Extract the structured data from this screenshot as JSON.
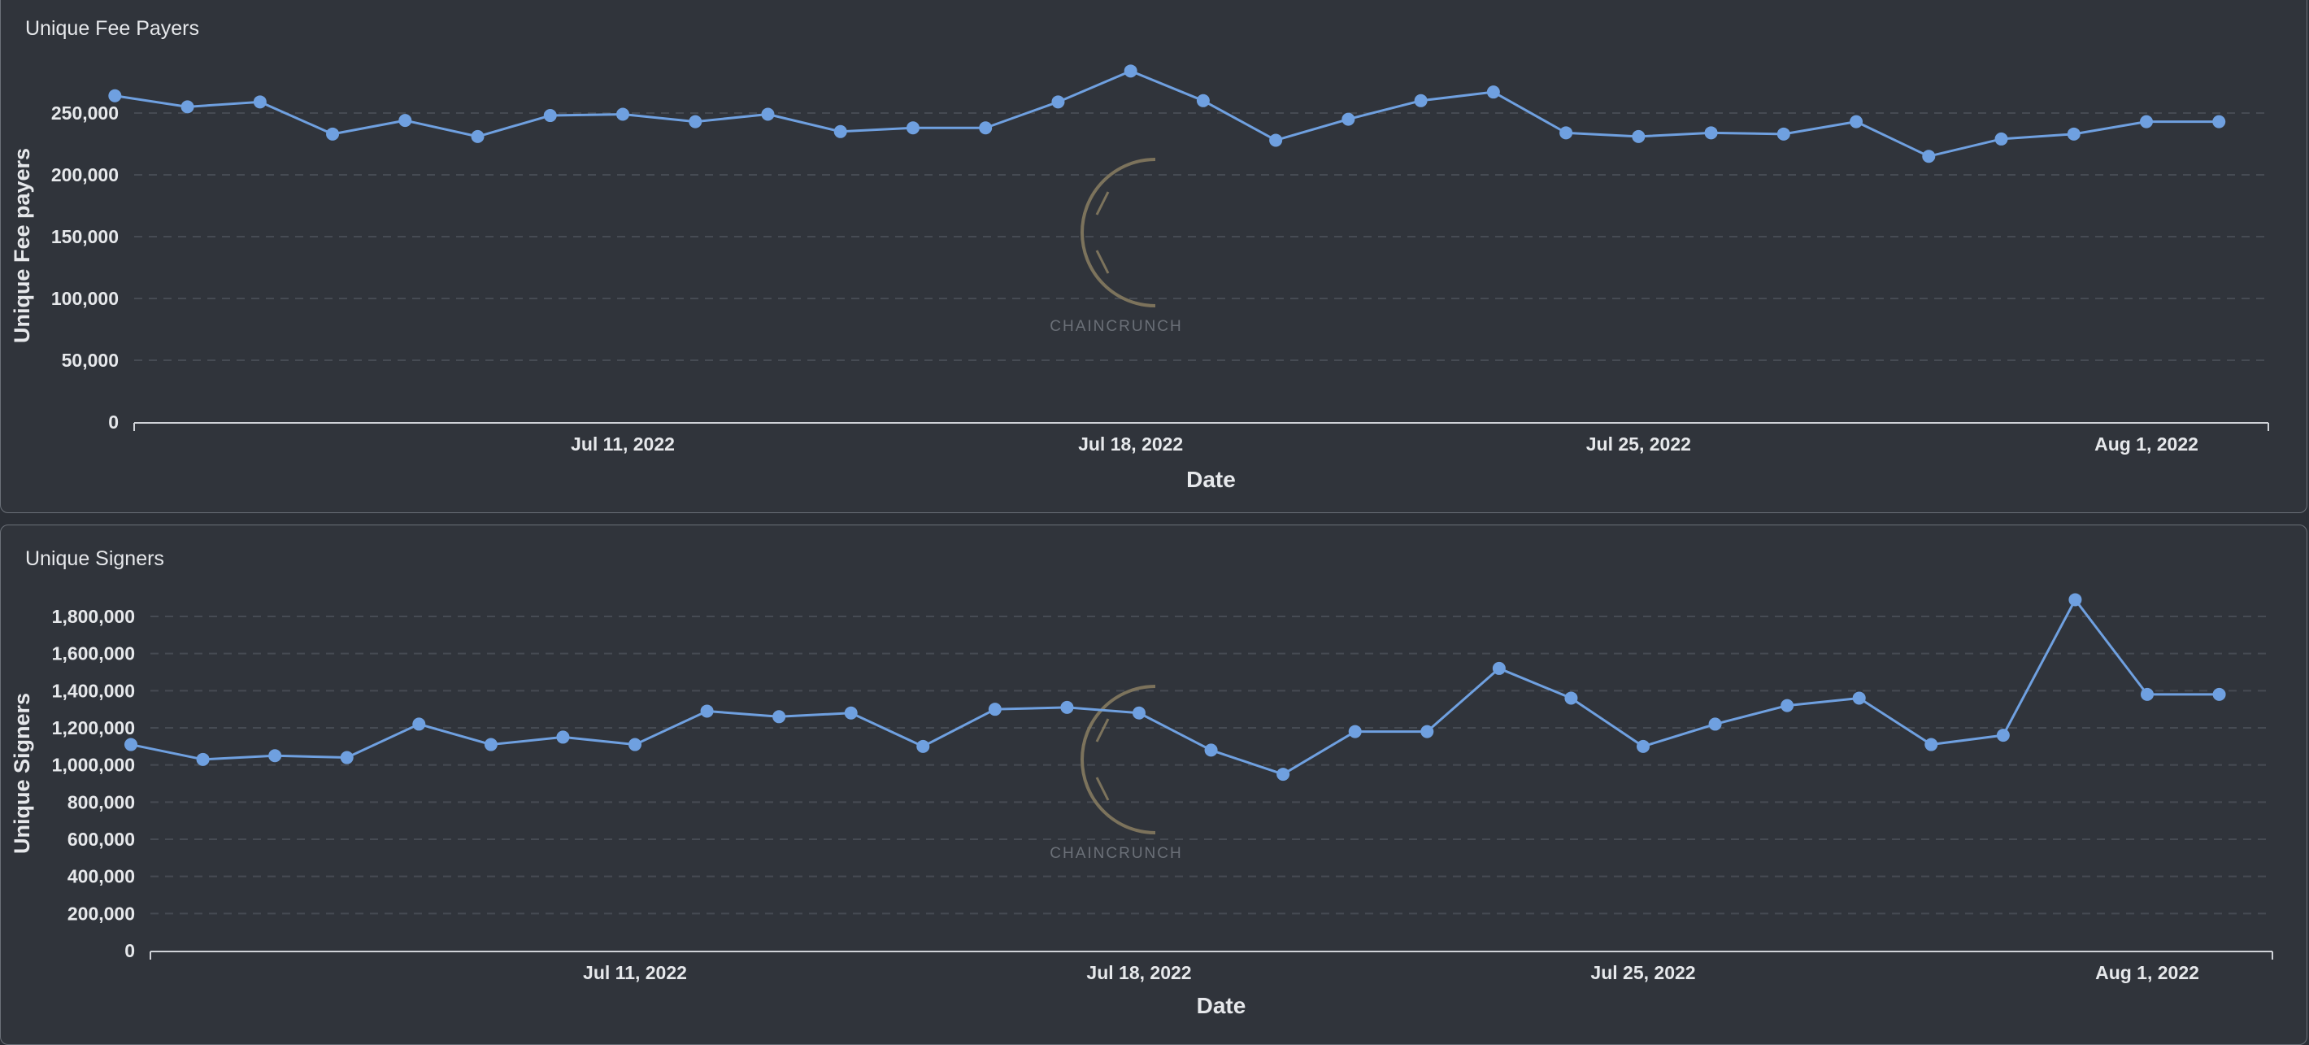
{
  "colors": {
    "line": "#6fa0e0",
    "grid": "#464b53",
    "axis": "#d0d3d8",
    "text": "#e6e8eb",
    "watermark": "#8a7e62"
  },
  "watermark": {
    "text": "CHAINCRUNCH"
  },
  "chart_data": [
    {
      "type": "line",
      "title": "Unique Fee Payers",
      "xlabel": "Date",
      "ylabel": "Unique Fee payers",
      "ylim": [
        0,
        290000
      ],
      "xlim": [
        "2022-07-01",
        "2022-08-03"
      ],
      "x_ticks": [
        {
          "date": "2022-07-11",
          "label": "Jul 11, 2022"
        },
        {
          "date": "2022-07-18",
          "label": "Jul 18, 2022"
        },
        {
          "date": "2022-07-25",
          "label": "Jul 25, 2022"
        },
        {
          "date": "2022-08-01",
          "label": "Aug 1, 2022"
        }
      ],
      "y_ticks": [
        {
          "value": 0,
          "label": "0"
        },
        {
          "value": 50000,
          "label": "50,000"
        },
        {
          "value": 100000,
          "label": "100,000"
        },
        {
          "value": 150000,
          "label": "150,000"
        },
        {
          "value": 200000,
          "label": "200,000"
        },
        {
          "value": 250000,
          "label": "250,000"
        }
      ],
      "grid": true,
      "x": [
        "2022-07-04",
        "2022-07-05",
        "2022-07-06",
        "2022-07-07",
        "2022-07-08",
        "2022-07-09",
        "2022-07-10",
        "2022-07-11",
        "2022-07-12",
        "2022-07-13",
        "2022-07-14",
        "2022-07-15",
        "2022-07-16",
        "2022-07-17",
        "2022-07-18",
        "2022-07-19",
        "2022-07-20",
        "2022-07-21",
        "2022-07-22",
        "2022-07-23",
        "2022-07-24",
        "2022-07-25",
        "2022-07-26",
        "2022-07-27",
        "2022-07-28",
        "2022-07-29",
        "2022-07-30",
        "2022-07-31",
        "2022-08-01",
        "2022-08-02"
      ],
      "values": [
        264000,
        255000,
        259000,
        233000,
        244000,
        231000,
        248000,
        249000,
        243000,
        249000,
        235000,
        238000,
        238000,
        259000,
        284000,
        260000,
        228000,
        245000,
        260000,
        267000,
        234000,
        231000,
        234000,
        233000,
        243000,
        215000,
        229000,
        233000,
        243000,
        243000
      ]
    },
    {
      "type": "line",
      "title": "Unique Signers",
      "xlabel": "Date",
      "ylabel": "Unique Signers",
      "ylim": [
        0,
        1900000
      ],
      "xlim": [
        "2022-07-01",
        "2022-08-03"
      ],
      "x_ticks": [
        {
          "date": "2022-07-11",
          "label": "Jul 11, 2022"
        },
        {
          "date": "2022-07-18",
          "label": "Jul 18, 2022"
        },
        {
          "date": "2022-07-25",
          "label": "Jul 25, 2022"
        },
        {
          "date": "2022-08-01",
          "label": "Aug 1, 2022"
        }
      ],
      "y_ticks": [
        {
          "value": 0,
          "label": "0"
        },
        {
          "value": 200000,
          "label": "200,000"
        },
        {
          "value": 400000,
          "label": "400,000"
        },
        {
          "value": 600000,
          "label": "600,000"
        },
        {
          "value": 800000,
          "label": "800,000"
        },
        {
          "value": 1000000,
          "label": "1,000,000"
        },
        {
          "value": 1200000,
          "label": "1,200,000"
        },
        {
          "value": 1400000,
          "label": "1,400,000"
        },
        {
          "value": 1600000,
          "label": "1,600,000"
        },
        {
          "value": 1800000,
          "label": "1,800,000"
        }
      ],
      "grid": true,
      "x": [
        "2022-07-04",
        "2022-07-05",
        "2022-07-06",
        "2022-07-07",
        "2022-07-08",
        "2022-07-09",
        "2022-07-10",
        "2022-07-11",
        "2022-07-12",
        "2022-07-13",
        "2022-07-14",
        "2022-07-15",
        "2022-07-16",
        "2022-07-17",
        "2022-07-18",
        "2022-07-19",
        "2022-07-20",
        "2022-07-21",
        "2022-07-22",
        "2022-07-23",
        "2022-07-24",
        "2022-07-25",
        "2022-07-26",
        "2022-07-27",
        "2022-07-28",
        "2022-07-29",
        "2022-07-30",
        "2022-07-31",
        "2022-08-01",
        "2022-08-02"
      ],
      "values": [
        1110000,
        1030000,
        1050000,
        1040000,
        1220000,
        1110000,
        1150000,
        1110000,
        1290000,
        1260000,
        1280000,
        1100000,
        1300000,
        1310000,
        1280000,
        1080000,
        950000,
        1180000,
        1180000,
        1520000,
        1360000,
        1100000,
        1220000,
        1320000,
        1360000,
        1110000,
        1160000,
        1890000,
        1380000,
        1380000
      ]
    }
  ]
}
